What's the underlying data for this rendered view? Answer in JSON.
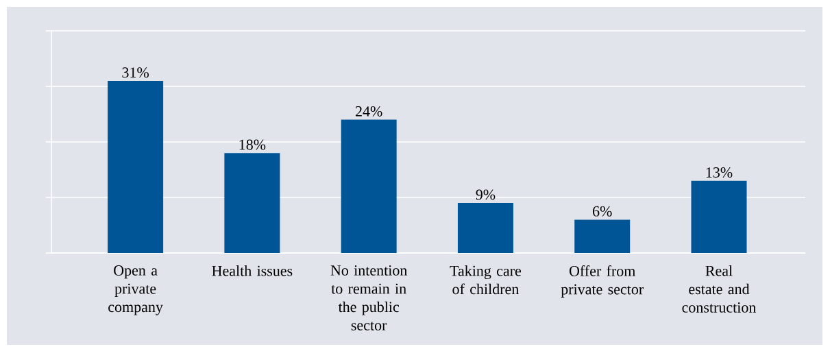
{
  "chart_data": {
    "type": "bar",
    "categories": [
      "Open a private company",
      "Health issues",
      "No intention to remain in the public sector",
      "Taking care of children",
      "Offer from private sector",
      "Real estate and construction"
    ],
    "values": [
      31,
      18,
      24,
      9,
      6,
      13
    ],
    "value_labels": [
      "31%",
      "18%",
      "24%",
      "9%",
      "6%",
      "13%"
    ],
    "color": "#005596",
    "ylim": [
      0,
      40
    ],
    "yticks": [
      {
        "value": 0,
        "label": null
      },
      {
        "value": 10,
        "label": null
      },
      {
        "value": 20,
        "label": null
      },
      {
        "value": 30,
        "label": null
      },
      {
        "value": 40,
        "label": null
      }
    ],
    "tick_labels": "x",
    "grid": "y"
  }
}
